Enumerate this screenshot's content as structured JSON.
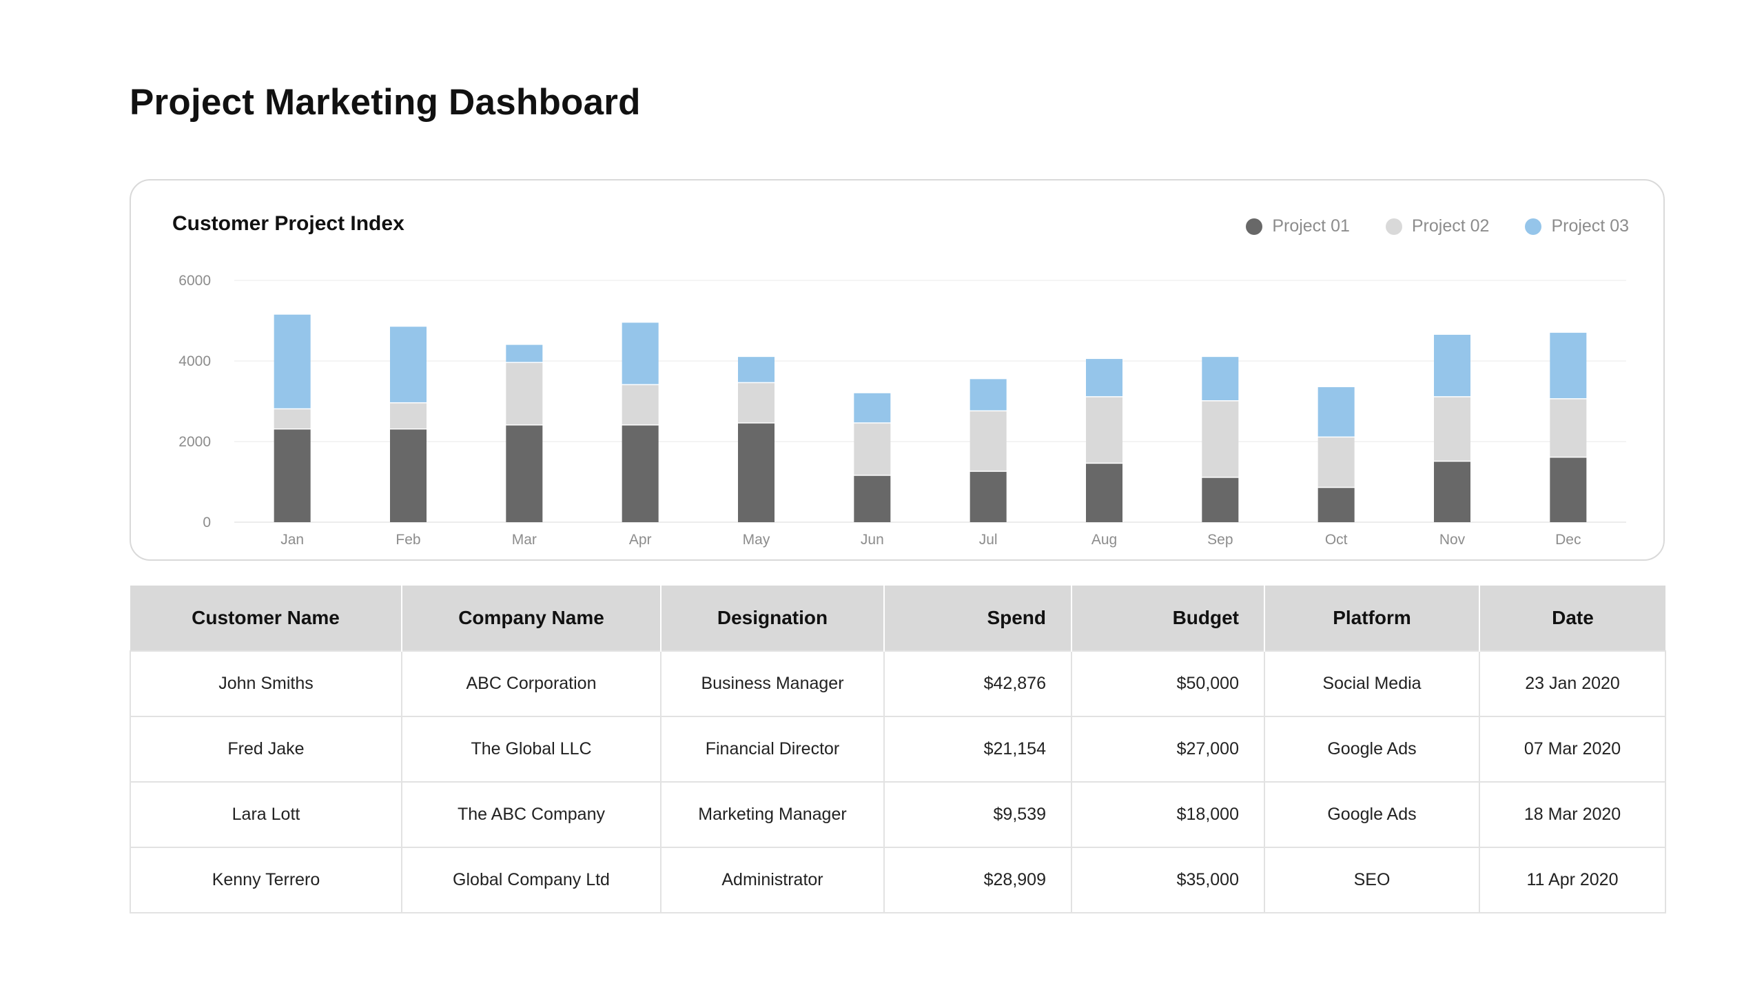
{
  "page": {
    "title": "Project Marketing Dashboard"
  },
  "colors": {
    "project01": "#686868",
    "project02": "#d9d9d9",
    "project03": "#95c5ea"
  },
  "chart_data": {
    "type": "bar",
    "stacked": true,
    "title": "Customer Project Index",
    "xlabel": "",
    "ylabel": "",
    "ylim": [
      0,
      6000
    ],
    "yticks": [
      0,
      2000,
      4000,
      6000
    ],
    "grid": true,
    "legend_position": "top-right",
    "categories": [
      "Jan",
      "Feb",
      "Mar",
      "Apr",
      "May",
      "Jun",
      "Jul",
      "Aug",
      "Sep",
      "Oct",
      "Nov",
      "Dec"
    ],
    "series": [
      {
        "name": "Project 01",
        "color": "#686868",
        "values": [
          2300,
          2300,
          2400,
          2400,
          2450,
          1150,
          1250,
          1450,
          1100,
          850,
          1500,
          1600
        ]
      },
      {
        "name": "Project 02",
        "color": "#d9d9d9",
        "values": [
          500,
          650,
          1550,
          1000,
          1000,
          1300,
          1500,
          1650,
          1900,
          1250,
          1600,
          1450
        ]
      },
      {
        "name": "Project 03",
        "color": "#95c5ea",
        "values": [
          2350,
          1900,
          450,
          1550,
          650,
          750,
          800,
          950,
          1100,
          1250,
          1550,
          1650
        ]
      }
    ]
  },
  "table": {
    "headers": [
      "Customer Name",
      "Company Name",
      "Designation",
      "Spend",
      "Budget",
      "Platform",
      "Date"
    ],
    "rows": [
      [
        "John Smiths",
        "ABC Corporation",
        "Business Manager",
        "$42,876",
        "$50,000",
        "Social Media",
        "23 Jan 2020"
      ],
      [
        "Fred Jake",
        "The Global LLC",
        "Financial Director",
        "$21,154",
        "$27,000",
        "Google Ads",
        "07 Mar 2020"
      ],
      [
        "Lara Lott",
        "The ABC Company",
        "Marketing Manager",
        "$9,539",
        "$18,000",
        "Google Ads",
        "18 Mar 2020"
      ],
      [
        "Kenny Terrero",
        "Global Company Ltd",
        "Administrator",
        "$28,909",
        "$35,000",
        "SEO",
        "11 Apr 2020"
      ]
    ]
  }
}
